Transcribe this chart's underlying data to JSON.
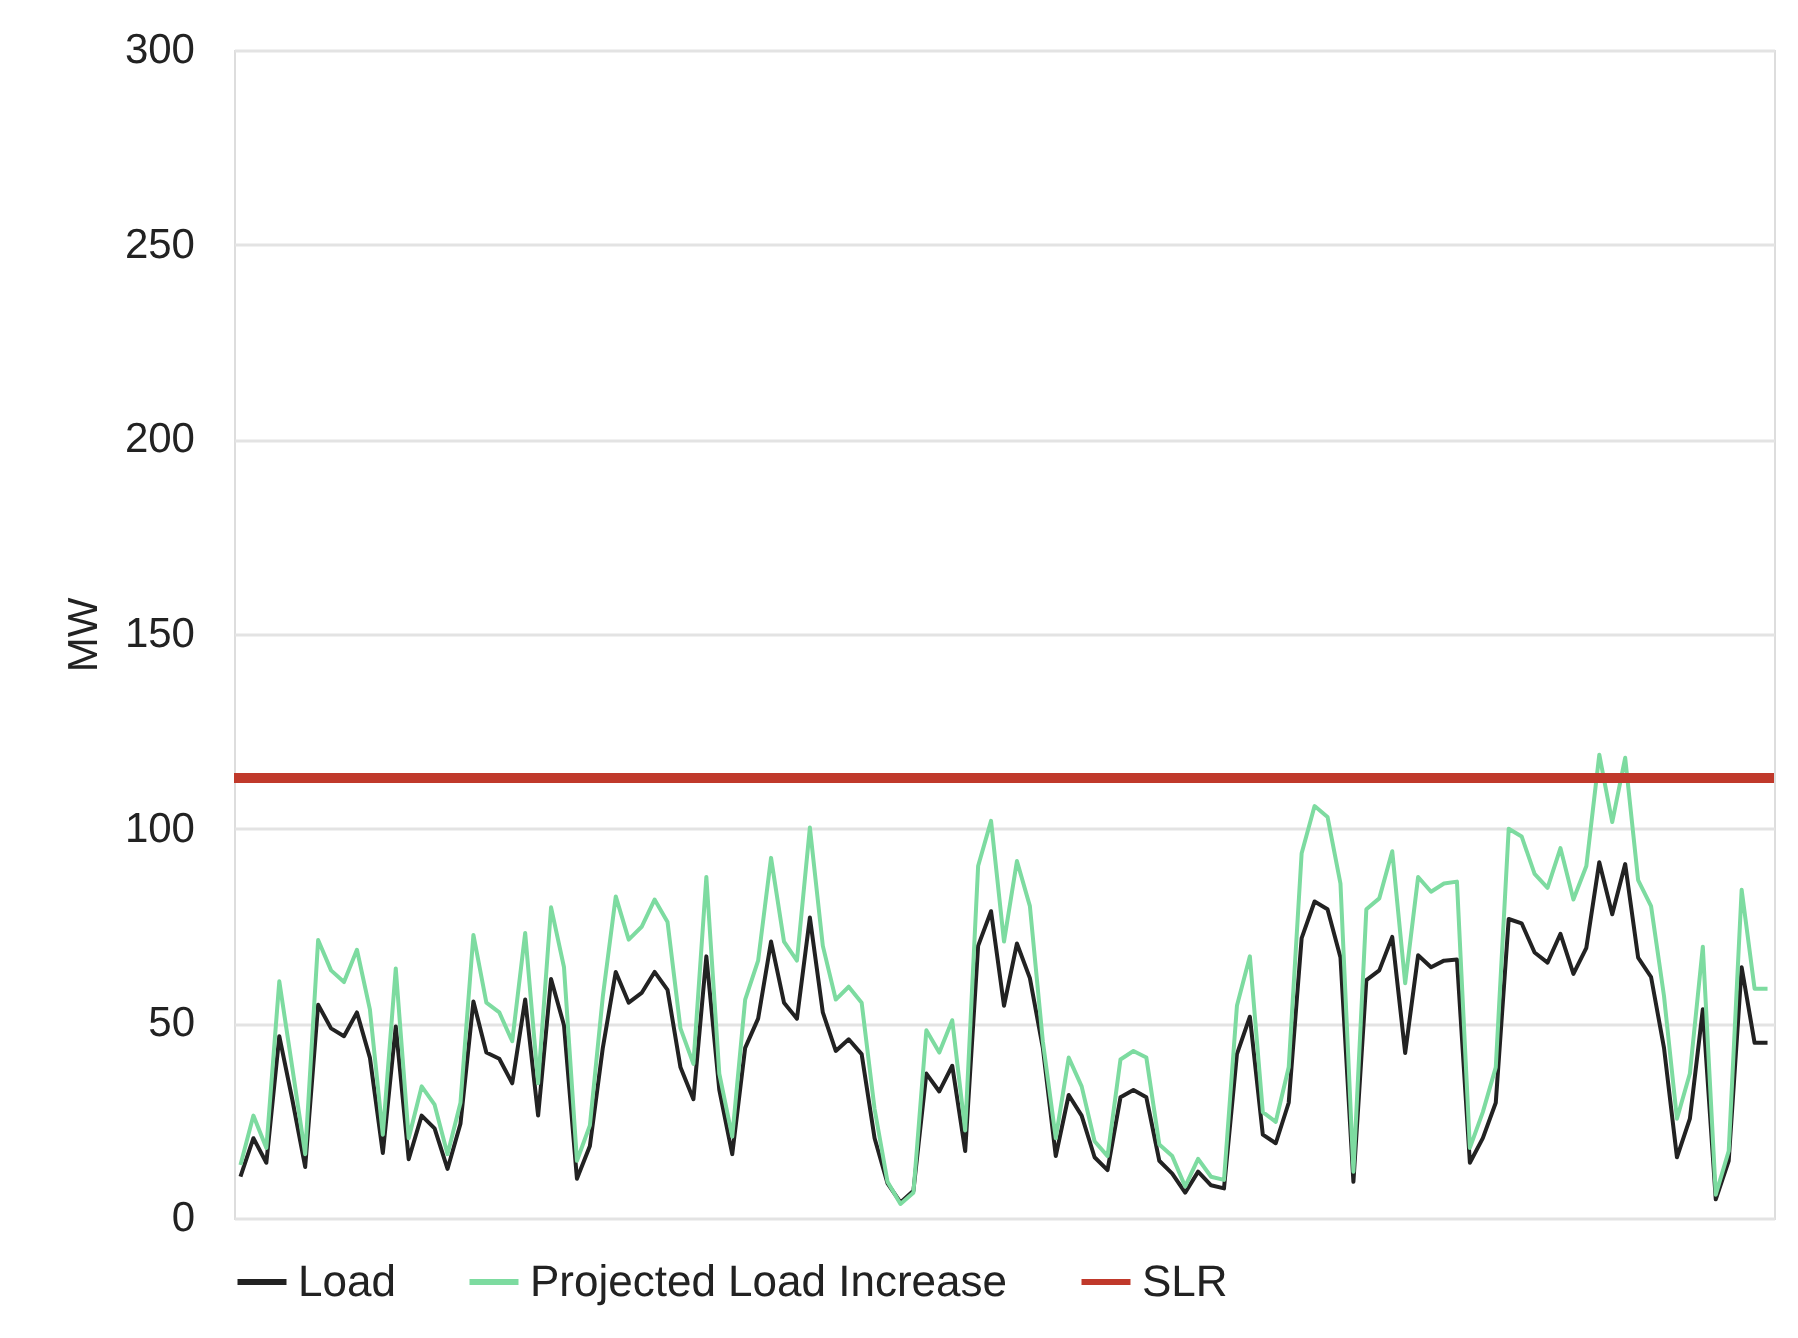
{
  "chart_data": {
    "type": "line",
    "ylabel": "MW",
    "categories": [
      null,
      null,
      null,
      null,
      null,
      null,
      null,
      null,
      null,
      null,
      null,
      null,
      null,
      null,
      null,
      null,
      null,
      null,
      null,
      null,
      null,
      null,
      null,
      null,
      null,
      null,
      null,
      null,
      null,
      null,
      null,
      null,
      null,
      null,
      null,
      null,
      null,
      null,
      null,
      null,
      null,
      null,
      null,
      null,
      null,
      null,
      null,
      null,
      null,
      null,
      null,
      null,
      null,
      null,
      null,
      null,
      null,
      null,
      null,
      null,
      null,
      null,
      null,
      null,
      null,
      null,
      null,
      null,
      null,
      null,
      null,
      null,
      null,
      null,
      null,
      null,
      null,
      null,
      null,
      null,
      null,
      null,
      null,
      null,
      null,
      null,
      null,
      null,
      null,
      null,
      null,
      null,
      null,
      null,
      null,
      null,
      null,
      null,
      null,
      null,
      null,
      null,
      null,
      null,
      null,
      null,
      null,
      null,
      null,
      null,
      null,
      null,
      null,
      null,
      null,
      null,
      null,
      null,
      null
    ],
    "series": [
      {
        "name": "Load",
        "color": "#222222",
        "values": [
          10.6,
          20.5,
          14.2,
          46.7,
          30.5,
          13.1,
          54.8,
          48.7,
          46.7,
          52.8,
          41.2,
          16.7,
          49.2,
          15.1,
          26.3,
          23.0,
          12.6,
          24.2,
          55.6,
          42.5,
          40.9,
          34.6,
          56.1,
          26.3,
          61.4,
          49.5,
          10.1,
          18.5,
          43.7,
          63.2,
          55.3,
          57.8,
          63.2,
          58.6,
          38.7,
          30.5,
          67.2,
          32.9,
          16.4,
          43.7,
          51.2,
          71.0,
          55.3,
          51.2,
          77.2,
          52.8,
          42.9,
          45.9,
          42.1,
          20.5,
          8.9,
          4.0,
          7.0,
          37.1,
          32.5,
          39.1,
          17.2,
          69.9,
          78.8,
          54.5,
          70.5,
          61.6,
          43.7,
          15.9,
          31.6,
          26.3,
          15.6,
          12.3,
          31.0,
          32.9,
          31.0,
          14.7,
          11.4,
          6.5,
          11.9,
          8.4,
          7.6,
          42.1,
          51.7,
          21.4,
          19.2,
          29.6,
          71.9,
          81.3,
          79.3,
          66.9,
          9.3,
          61.1,
          63.6,
          72.2,
          42.4,
          67.5,
          64.4,
          66.1,
          66.4,
          14.2,
          20.5,
          29.6,
          76.8,
          75.7,
          68.2,
          65.6,
          73.0,
          62.7,
          69.4,
          91.4,
          78.0,
          90.9,
          66.9,
          61.9,
          43.7,
          15.6,
          25.5,
          53.6,
          4.8,
          14.7,
          64.4,
          45.0,
          45.0
        ]
      },
      {
        "name": "Projected Load Increase",
        "color": "#7ddba0",
        "values": [
          13.6,
          26.3,
          18.0,
          60.8,
          38.7,
          16.4,
          71.4,
          63.6,
          60.6,
          68.9,
          53.6,
          21.4,
          64.1,
          20.5,
          33.8,
          29.1,
          16.4,
          29.6,
          72.7,
          55.3,
          52.8,
          45.4,
          73.2,
          34.6,
          79.8,
          64.4,
          14.7,
          23.8,
          56.9,
          82.6,
          71.5,
          74.8,
          81.8,
          76.0,
          48.7,
          39.6,
          87.6,
          37.1,
          20.9,
          56.1,
          66.1,
          92.5,
          71.0,
          66.1,
          100.3,
          69.9,
          56.1,
          59.4,
          55.3,
          28.0,
          9.3,
          3.6,
          6.5,
          48.2,
          42.5,
          50.8,
          22.5,
          90.4,
          102.0,
          71.0,
          91.7,
          80.1,
          45.4,
          20.5,
          41.2,
          33.8,
          19.7,
          15.9,
          40.7,
          42.9,
          41.2,
          18.9,
          15.9,
          8.1,
          15.2,
          10.6,
          9.8,
          54.5,
          67.2,
          27.2,
          24.7,
          38.7,
          93.7,
          105.8,
          103.0,
          85.9,
          11.9,
          79.3,
          82.1,
          94.2,
          60.3,
          87.6,
          83.8,
          85.9,
          86.4,
          18.0,
          27.2,
          38.7,
          100.0,
          98.0,
          88.4,
          84.8,
          95.0,
          81.8,
          90.4,
          119.0,
          101.7,
          118.2,
          86.8,
          80.1,
          57.0,
          25.5,
          37.1,
          69.7,
          6.0,
          17.2,
          84.3,
          58.9,
          58.9
        ]
      }
    ],
    "ref_lines": [
      {
        "axis": "y",
        "value": 113,
        "label": "SLR",
        "color": "#c0392b"
      }
    ],
    "ylim": [
      0,
      300
    ],
    "yticks": [
      0,
      50,
      100,
      150,
      200,
      250,
      300
    ],
    "grid": "y",
    "legend": "bottom"
  }
}
